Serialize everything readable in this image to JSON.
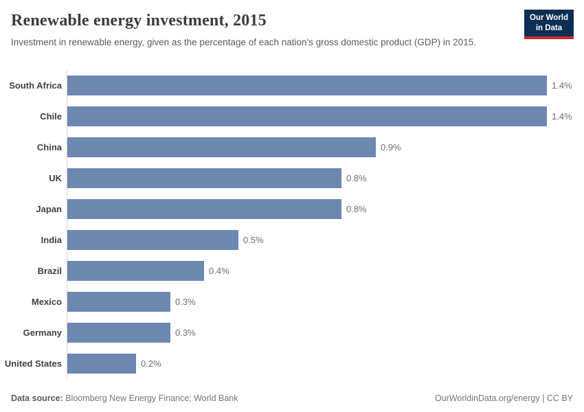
{
  "header": {
    "title": "Renewable energy investment, 2015",
    "subtitle": "Investment in renewable energy, given as the percentage of each nation's gross domestic product (GDP) in 2015.",
    "logo": {
      "line1": "Our World",
      "line2": "in Data",
      "bg_color": "#0d2e54",
      "stripe_color": "#cf2a28"
    }
  },
  "chart_data": {
    "type": "bar",
    "orientation": "horizontal",
    "title": "Renewable energy investment, 2015",
    "subtitle": "Investment in renewable energy, given as the percentage of each nation's gross domestic product (GDP) in 2015.",
    "categories": [
      "South Africa",
      "Chile",
      "China",
      "UK",
      "Japan",
      "India",
      "Brazil",
      "Mexico",
      "Germany",
      "United States"
    ],
    "values": [
      1.4,
      1.4,
      0.9,
      0.8,
      0.8,
      0.5,
      0.4,
      0.3,
      0.3,
      0.2
    ],
    "value_labels": [
      "1.4%",
      "1.4%",
      "0.9%",
      "0.8%",
      "0.8%",
      "0.5%",
      "0.4%",
      "0.3%",
      "0.3%",
      "0.2%"
    ],
    "unit": "% of GDP",
    "xlim": [
      0,
      1.4
    ],
    "grid": false,
    "legend": "none",
    "bar_color": "#6c87b0"
  },
  "footer": {
    "datasource_label": "Data source:",
    "datasource_value": "Bloomberg New Energy Finance; World Bank",
    "credit": "OurWorldinData.org/energy | CC BY"
  }
}
